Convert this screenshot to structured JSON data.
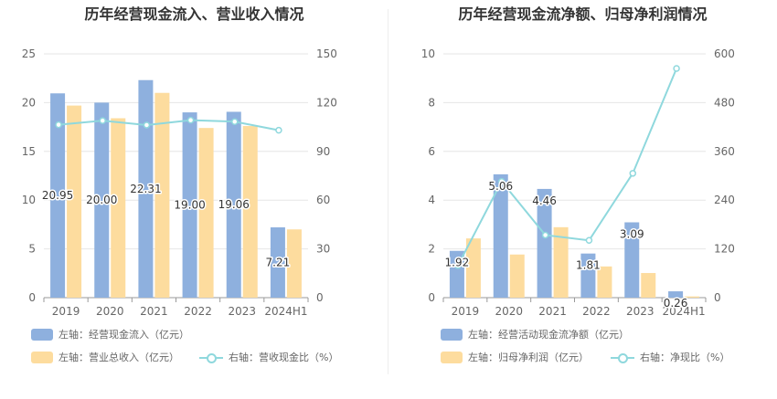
{
  "colors": {
    "blue": "#8eb0de",
    "orange": "#fddc9e",
    "teal": "#8fd8dd",
    "grid": "#e6e6e6",
    "axis": "#999999",
    "label": "#333333"
  },
  "chart_data": [
    {
      "type": "bar",
      "title": "历年经营现金流入、营业收入情况",
      "categories": [
        "2019",
        "2020",
        "2021",
        "2022",
        "2023",
        "2024H1"
      ],
      "left_axis": {
        "min": 0,
        "max": 25,
        "ticks": [
          "0",
          "5",
          "10",
          "15",
          "20",
          "25"
        ]
      },
      "right_axis": {
        "min": 0,
        "max": 150,
        "ticks": [
          "0",
          "30",
          "60",
          "90",
          "120",
          "150"
        ]
      },
      "series": [
        {
          "name": "左轴：经营现金流入（亿元）",
          "kind": "bar",
          "axis": "left",
          "color": "#8eb0de",
          "values": [
            20.95,
            20.0,
            22.31,
            19.0,
            19.06,
            7.21
          ],
          "labels": [
            "20.95",
            "20.00",
            "22.31",
            "19.00",
            "19.06",
            "7.21"
          ]
        },
        {
          "name": "左轴：营业总收入（亿元）",
          "kind": "bar",
          "axis": "left",
          "color": "#fddc9e",
          "values": [
            19.7,
            18.4,
            21.0,
            17.4,
            17.6,
            7.0
          ]
        },
        {
          "name": "右轴：营收现金比（%）",
          "kind": "line",
          "axis": "right",
          "color": "#8fd8dd",
          "values": [
            106.4,
            108.9,
            106.2,
            109.2,
            108.3,
            103.0
          ]
        }
      ],
      "legend": [
        {
          "label": "左轴：经营现金流入（亿元）",
          "kind": "box",
          "color": "#8eb0de"
        },
        {
          "label": "左轴：营业总收入（亿元）",
          "kind": "box",
          "color": "#fddc9e"
        },
        {
          "label": "右轴：营收现金比（%）",
          "kind": "line",
          "color": "#8fd8dd"
        }
      ]
    },
    {
      "type": "bar",
      "title": "历年经营现金流净额、归母净利润情况",
      "categories": [
        "2019",
        "2020",
        "2021",
        "2022",
        "2023",
        "2024H1"
      ],
      "left_axis": {
        "min": 0,
        "max": 10,
        "ticks": [
          "0",
          "2",
          "4",
          "6",
          "8",
          "10"
        ]
      },
      "right_axis": {
        "min": 0,
        "max": 600,
        "ticks": [
          "0",
          "120",
          "240",
          "360",
          "480",
          "600"
        ]
      },
      "series": [
        {
          "name": "左轴：经营活动现金流净额（亿元）",
          "kind": "bar",
          "axis": "left",
          "color": "#8eb0de",
          "values": [
            1.92,
            5.06,
            4.46,
            1.81,
            3.09,
            0.26
          ],
          "labels": [
            "1.92",
            "5.06",
            "4.46",
            "1.81",
            "3.09",
            "0.26"
          ]
        },
        {
          "name": "左轴：归母净利润（亿元）",
          "kind": "bar",
          "axis": "left",
          "color": "#fddc9e",
          "values": [
            2.43,
            1.77,
            2.89,
            1.28,
            1.01,
            0.05
          ]
        },
        {
          "name": "右轴：净现比（%）",
          "kind": "line",
          "axis": "right",
          "color": "#8fd8dd",
          "values": [
            79,
            286,
            154,
            141,
            306,
            564
          ]
        }
      ],
      "legend": [
        {
          "label": "左轴：经营活动现金流净额（亿元）",
          "kind": "box",
          "color": "#8eb0de"
        },
        {
          "label": "左轴：归母净利润（亿元）",
          "kind": "box",
          "color": "#fddc9e"
        },
        {
          "label": "右轴：净现比（%）",
          "kind": "line",
          "color": "#8fd8dd"
        }
      ]
    }
  ]
}
